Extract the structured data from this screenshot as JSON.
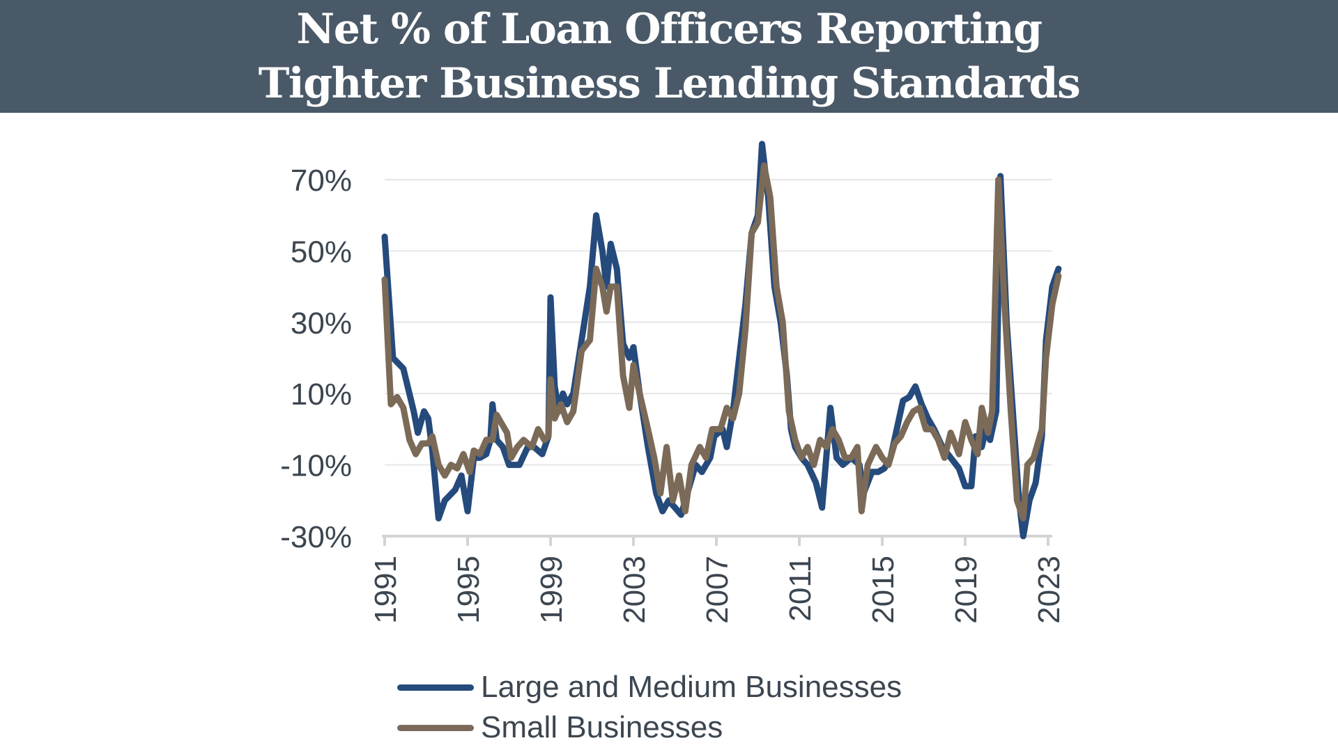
{
  "header": {
    "title_line1": "Net % of Loan Officers Reporting",
    "title_line2": "Tighter Business Lending Standards"
  },
  "chart_data": {
    "type": "line",
    "title": "Net % of Loan Officers Reporting Tighter Business Lending Standards",
    "xlabel": "",
    "ylabel": "",
    "xlim": [
      1991,
      2023.5
    ],
    "ylim": [
      -30,
      80
    ],
    "y_ticks": [
      70,
      50,
      30,
      10,
      -10,
      -30
    ],
    "y_tick_labels": [
      "70%",
      "50%",
      "30%",
      "10%",
      "-10%",
      "-30%"
    ],
    "x_ticks": [
      1991,
      1995,
      1999,
      2003,
      2007,
      2011,
      2015,
      2019,
      2023
    ],
    "x_tick_labels": [
      "1991",
      "1995",
      "1999",
      "2003",
      "2007",
      "2011",
      "2015",
      "2019",
      "2023"
    ],
    "grid": "horizontal",
    "legend_position": "bottom",
    "series": [
      {
        "name": "Large and Medium Businesses",
        "color": "#254a7c",
        "points": [
          [
            1991.0,
            54
          ],
          [
            1991.4,
            20
          ],
          [
            1991.9,
            17
          ],
          [
            1992.4,
            5
          ],
          [
            1992.6,
            -1
          ],
          [
            1992.9,
            5
          ],
          [
            1993.1,
            3
          ],
          [
            1993.3,
            -6
          ],
          [
            1993.6,
            -25
          ],
          [
            1993.9,
            -20
          ],
          [
            1994.4,
            -17
          ],
          [
            1994.7,
            -13
          ],
          [
            1995.0,
            -23
          ],
          [
            1995.3,
            -8
          ],
          [
            1995.6,
            -8
          ],
          [
            1995.9,
            -7
          ],
          [
            1996.1,
            -3
          ],
          [
            1996.2,
            7
          ],
          [
            1996.4,
            -3
          ],
          [
            1996.7,
            -5
          ],
          [
            1997.0,
            -10
          ],
          [
            1997.5,
            -10
          ],
          [
            1997.9,
            -5
          ],
          [
            1998.2,
            -5
          ],
          [
            1998.6,
            -7
          ],
          [
            1998.9,
            -2
          ],
          [
            1999.0,
            37
          ],
          [
            1999.2,
            12
          ],
          [
            1999.4,
            5
          ],
          [
            1999.6,
            10
          ],
          [
            1999.8,
            7
          ],
          [
            2000.1,
            10
          ],
          [
            2000.5,
            25
          ],
          [
            2000.9,
            40
          ],
          [
            2001.2,
            60
          ],
          [
            2001.5,
            50
          ],
          [
            2001.7,
            40
          ],
          [
            2001.9,
            52
          ],
          [
            2002.2,
            45
          ],
          [
            2002.5,
            24
          ],
          [
            2002.8,
            20
          ],
          [
            2003.0,
            23
          ],
          [
            2003.3,
            10
          ],
          [
            2003.7,
            -5
          ],
          [
            2004.1,
            -18
          ],
          [
            2004.4,
            -23
          ],
          [
            2004.7,
            -20
          ],
          [
            2005.0,
            -22
          ],
          [
            2005.3,
            -24
          ],
          [
            2005.6,
            -18
          ],
          [
            2006.0,
            -10
          ],
          [
            2006.3,
            -12
          ],
          [
            2006.7,
            -8
          ],
          [
            2006.9,
            -2
          ],
          [
            2007.3,
            0
          ],
          [
            2007.5,
            -5
          ],
          [
            2007.8,
            5
          ],
          [
            2008.1,
            20
          ],
          [
            2008.4,
            35
          ],
          [
            2008.7,
            55
          ],
          [
            2009.0,
            60
          ],
          [
            2009.2,
            80
          ],
          [
            2009.5,
            65
          ],
          [
            2009.8,
            40
          ],
          [
            2010.1,
            30
          ],
          [
            2010.4,
            15
          ],
          [
            2010.6,
            0
          ],
          [
            2010.8,
            -5
          ],
          [
            2011.1,
            -8
          ],
          [
            2011.4,
            -10
          ],
          [
            2011.8,
            -15
          ],
          [
            2012.1,
            -22
          ],
          [
            2012.5,
            6
          ],
          [
            2012.8,
            -8
          ],
          [
            2013.1,
            -10
          ],
          [
            2013.5,
            -8
          ],
          [
            2013.9,
            -10
          ],
          [
            2014.1,
            -18
          ],
          [
            2014.5,
            -12
          ],
          [
            2014.8,
            -12
          ],
          [
            2015.1,
            -11
          ],
          [
            2015.4,
            -8
          ],
          [
            2015.7,
            0
          ],
          [
            2016.0,
            8
          ],
          [
            2016.3,
            9
          ],
          [
            2016.6,
            12
          ],
          [
            2016.9,
            7
          ],
          [
            2017.2,
            3
          ],
          [
            2017.5,
            0
          ],
          [
            2017.9,
            -5
          ],
          [
            2018.3,
            -8
          ],
          [
            2018.7,
            -11
          ],
          [
            2019.0,
            -16
          ],
          [
            2019.3,
            -16
          ],
          [
            2019.5,
            -2
          ],
          [
            2019.8,
            -5
          ],
          [
            2020.0,
            0
          ],
          [
            2020.2,
            -3
          ],
          [
            2020.5,
            5
          ],
          [
            2020.7,
            71
          ],
          [
            2021.0,
            30
          ],
          [
            2021.3,
            5
          ],
          [
            2021.6,
            -20
          ],
          [
            2021.8,
            -30
          ],
          [
            2022.1,
            -20
          ],
          [
            2022.4,
            -15
          ],
          [
            2022.7,
            -2
          ],
          [
            2022.9,
            25
          ],
          [
            2023.2,
            40
          ],
          [
            2023.5,
            45
          ]
        ]
      },
      {
        "name": "Small Businesses",
        "color": "#7a6a57",
        "points": [
          [
            1991.0,
            42
          ],
          [
            1991.3,
            7
          ],
          [
            1991.6,
            9
          ],
          [
            1991.9,
            6
          ],
          [
            1992.2,
            -3
          ],
          [
            1992.5,
            -7
          ],
          [
            1992.8,
            -4
          ],
          [
            1993.1,
            -4
          ],
          [
            1993.3,
            -2
          ],
          [
            1993.6,
            -10
          ],
          [
            1993.9,
            -13
          ],
          [
            1994.2,
            -10
          ],
          [
            1994.5,
            -11
          ],
          [
            1994.8,
            -7
          ],
          [
            1995.1,
            -12
          ],
          [
            1995.3,
            -6
          ],
          [
            1995.6,
            -7
          ],
          [
            1995.9,
            -3
          ],
          [
            1996.2,
            -3
          ],
          [
            1996.4,
            4
          ],
          [
            1996.6,
            2
          ],
          [
            1996.9,
            -1
          ],
          [
            1997.1,
            -8
          ],
          [
            1997.4,
            -5
          ],
          [
            1997.7,
            -3
          ],
          [
            1998.1,
            -5
          ],
          [
            1998.4,
            0
          ],
          [
            1998.7,
            -3
          ],
          [
            1998.9,
            -2
          ],
          [
            1999.0,
            14
          ],
          [
            1999.2,
            3
          ],
          [
            1999.5,
            7
          ],
          [
            1999.8,
            2
          ],
          [
            2000.1,
            5
          ],
          [
            2000.5,
            22
          ],
          [
            2000.9,
            25
          ],
          [
            2001.2,
            45
          ],
          [
            2001.5,
            40
          ],
          [
            2001.7,
            33
          ],
          [
            2001.9,
            40
          ],
          [
            2002.2,
            40
          ],
          [
            2002.5,
            15
          ],
          [
            2002.8,
            6
          ],
          [
            2003.0,
            18
          ],
          [
            2003.3,
            10
          ],
          [
            2003.7,
            0
          ],
          [
            2004.0,
            -8
          ],
          [
            2004.3,
            -18
          ],
          [
            2004.6,
            -5
          ],
          [
            2004.9,
            -20
          ],
          [
            2005.2,
            -13
          ],
          [
            2005.5,
            -23
          ],
          [
            2005.8,
            -10
          ],
          [
            2006.2,
            -5
          ],
          [
            2006.5,
            -8
          ],
          [
            2006.8,
            0
          ],
          [
            2007.2,
            0
          ],
          [
            2007.5,
            6
          ],
          [
            2007.8,
            3
          ],
          [
            2008.1,
            10
          ],
          [
            2008.4,
            28
          ],
          [
            2008.7,
            55
          ],
          [
            2009.0,
            58
          ],
          [
            2009.3,
            74
          ],
          [
            2009.6,
            65
          ],
          [
            2009.9,
            40
          ],
          [
            2010.2,
            30
          ],
          [
            2010.5,
            5
          ],
          [
            2010.8,
            -3
          ],
          [
            2011.1,
            -8
          ],
          [
            2011.4,
            -5
          ],
          [
            2011.7,
            -10
          ],
          [
            2012.0,
            -3
          ],
          [
            2012.3,
            -5
          ],
          [
            2012.6,
            0
          ],
          [
            2012.9,
            -3
          ],
          [
            2013.2,
            -8
          ],
          [
            2013.5,
            -8
          ],
          [
            2013.8,
            -5
          ],
          [
            2014.0,
            -23
          ],
          [
            2014.3,
            -10
          ],
          [
            2014.7,
            -5
          ],
          [
            2015.0,
            -8
          ],
          [
            2015.3,
            -10
          ],
          [
            2015.6,
            -4
          ],
          [
            2015.9,
            -2
          ],
          [
            2016.2,
            2
          ],
          [
            2016.5,
            5
          ],
          [
            2016.8,
            6
          ],
          [
            2017.1,
            0
          ],
          [
            2017.4,
            0
          ],
          [
            2017.7,
            -3
          ],
          [
            2018.0,
            -8
          ],
          [
            2018.3,
            -1
          ],
          [
            2018.7,
            -7
          ],
          [
            2019.0,
            2
          ],
          [
            2019.3,
            -3
          ],
          [
            2019.6,
            -7
          ],
          [
            2019.8,
            6
          ],
          [
            2020.1,
            -1
          ],
          [
            2020.3,
            5
          ],
          [
            2020.6,
            70
          ],
          [
            2020.9,
            35
          ],
          [
            2021.2,
            5
          ],
          [
            2021.5,
            -20
          ],
          [
            2021.8,
            -25
          ],
          [
            2022.0,
            -10
          ],
          [
            2022.3,
            -8
          ],
          [
            2022.7,
            0
          ],
          [
            2022.9,
            20
          ],
          [
            2023.2,
            35
          ],
          [
            2023.5,
            43
          ]
        ]
      }
    ]
  }
}
